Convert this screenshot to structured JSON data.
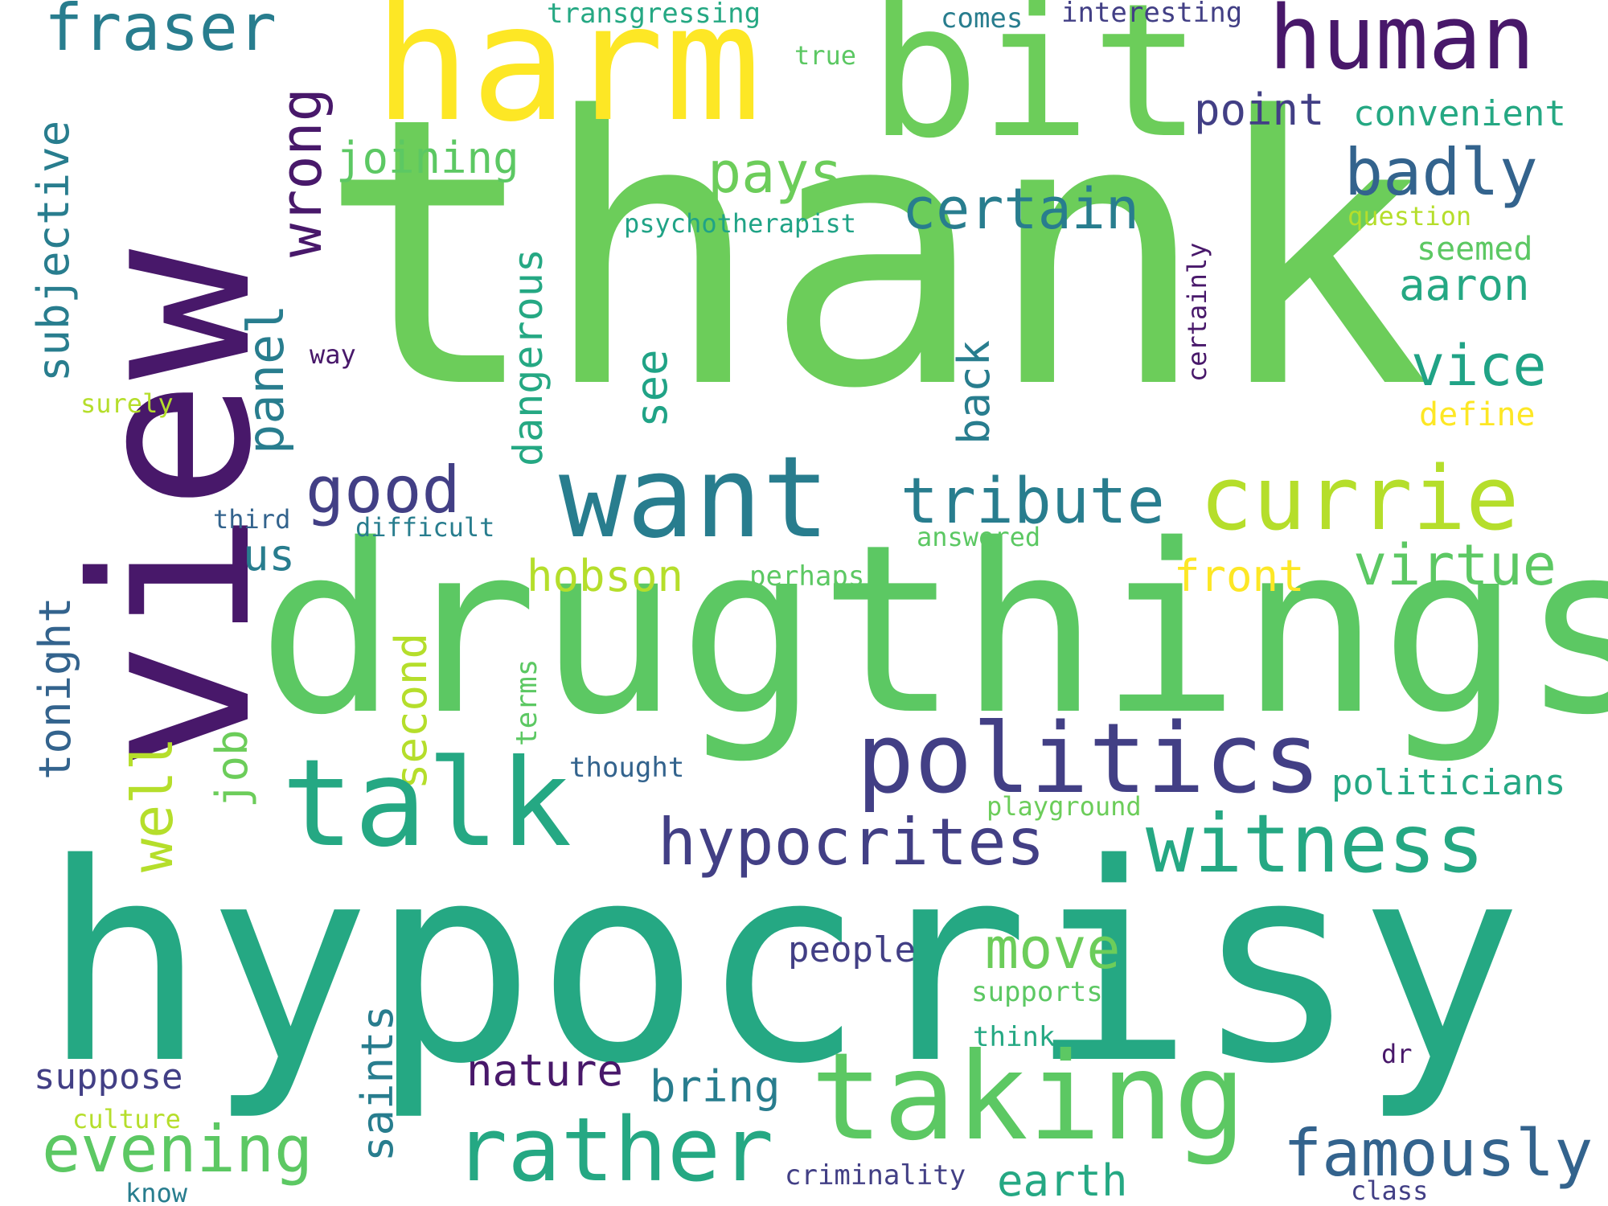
{
  "palette": {
    "deep_purple": "#48186a",
    "indigo": "#423f85",
    "slate_blue": "#33638d",
    "teal": "#287d8e",
    "green_teal": "#25a883",
    "mint": "#20a386",
    "green": "#5cc863",
    "light_green": "#6ccd5a",
    "lime": "#b5de2b",
    "yellow": "#fde725"
  },
  "words": {
    "thank": "thank",
    "view": "view",
    "hypocrisy": "hypocrisy",
    "drugthings": "drugthings",
    "harm": "harm",
    "bit": "bit",
    "human": "human",
    "fraser": "fraser",
    "transgressing": "transgressing",
    "comes": "comes",
    "interesting": "interesting",
    "true": "true",
    "point": "point",
    "convenient": "convenient",
    "subjective": "subjective",
    "wrong": "wrong",
    "joining": "joining",
    "pays": "pays",
    "badly": "badly",
    "certain": "certain",
    "psychotherapist": "psychotherapist",
    "question": "question",
    "seemed": "seemed",
    "certainly": "certainly",
    "aaron": "aaron",
    "dangerous": "dangerous",
    "panel": "panel",
    "way": "way",
    "surely": "surely",
    "see": "see",
    "back": "back",
    "vice": "vice",
    "define": "define",
    "good": "good",
    "want": "want",
    "tribute": "tribute",
    "currie": "currie",
    "third": "third",
    "difficult": "difficult",
    "answered": "answered",
    "us": "us",
    "hobson": "hobson",
    "front": "front",
    "virtue": "virtue",
    "perhaps": "perhaps",
    "tonight": "tonight",
    "well": "well",
    "second": "second",
    "terms": "terms",
    "job": "job",
    "politics": "politics",
    "thought": "thought",
    "talk": "talk",
    "politicians": "politicians",
    "playground": "playground",
    "hypocrites": "hypocrites",
    "witness": "witness",
    "move": "move",
    "people": "people",
    "supports": "supports",
    "saints": "saints",
    "think": "think",
    "dr": "dr",
    "suppose": "suppose",
    "nature": "nature",
    "bring": "bring",
    "taking": "taking",
    "culture": "culture",
    "evening": "evening",
    "rather": "rather",
    "famously": "famously",
    "earth": "earth",
    "criminality": "criminality",
    "know": "know",
    "class": "class"
  }
}
